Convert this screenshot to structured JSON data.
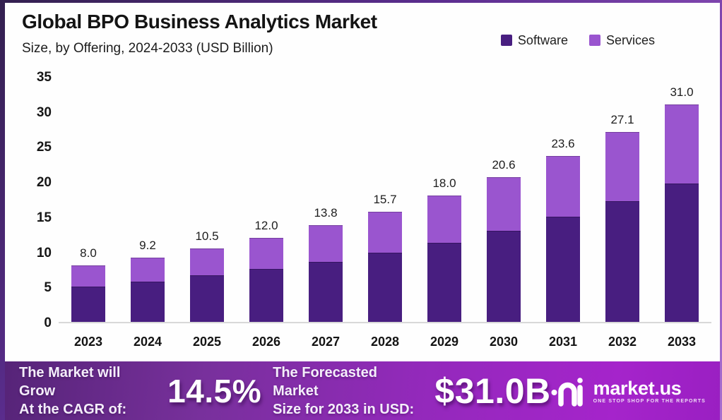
{
  "header": {
    "title": "Global BPO Business Analytics Market",
    "subtitle": "Size, by Offering, 2024-2033 (USD Billion)"
  },
  "legend": {
    "items": [
      {
        "label": "Software",
        "color": "#481e80"
      },
      {
        "label": "Services",
        "color": "#9a55cf"
      }
    ]
  },
  "chart_data": {
    "type": "bar",
    "stacked": true,
    "title": "Global BPO Business Analytics Market",
    "subtitle": "Size, by Offering, 2024-2033 (USD Billion)",
    "categories": [
      "2023",
      "2024",
      "2025",
      "2026",
      "2027",
      "2028",
      "2029",
      "2030",
      "2031",
      "2032",
      "2033"
    ],
    "series": [
      {
        "name": "Software",
        "color": "#481e80",
        "values": [
          5.0,
          5.7,
          6.6,
          7.5,
          8.6,
          9.9,
          11.3,
          13.0,
          15.0,
          17.2,
          19.7
        ]
      },
      {
        "name": "Services",
        "color": "#9a55cf",
        "values": [
          3.0,
          3.5,
          3.9,
          4.5,
          5.2,
          5.8,
          6.7,
          7.6,
          8.6,
          9.9,
          11.3
        ]
      }
    ],
    "totals": [
      "8.0",
      "9.2",
      "10.5",
      "12.0",
      "13.8",
      "15.7",
      "18.0",
      "20.6",
      "23.6",
      "27.1",
      "31.0"
    ],
    "yticks": [
      0,
      5,
      10,
      15,
      20,
      25,
      30,
      35
    ],
    "ylim": [
      0,
      35
    ],
    "xlabel": "",
    "ylabel": "",
    "grid": false,
    "legend_position": "top-right",
    "units": "USD Billion"
  },
  "footer": {
    "cagr_line1": "The Market will Grow",
    "cagr_line2": "At the CAGR of:",
    "cagr_value": "14.5%",
    "forecast_line1": "The Forecasted Market",
    "forecast_line2": "Size for 2033 in USD:",
    "forecast_value": "$31.0B",
    "brand_name": "market.us",
    "brand_tagline": "ONE STOP SHOP FOR THE REPORTS"
  },
  "colors": {
    "software": "#481e80",
    "services": "#9a55cf",
    "footer_gradient_left": "#562478",
    "footer_gradient_right": "#a524cb",
    "frame_border": "#5b2d8f",
    "baseline": "#d8d8d8"
  }
}
